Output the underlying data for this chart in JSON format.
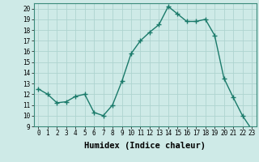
{
  "x": [
    0,
    1,
    2,
    3,
    4,
    5,
    6,
    7,
    8,
    9,
    10,
    11,
    12,
    13,
    14,
    15,
    16,
    17,
    18,
    19,
    20,
    21,
    22,
    23
  ],
  "y": [
    12.5,
    12.0,
    11.2,
    11.3,
    11.8,
    12.0,
    10.3,
    10.0,
    11.0,
    13.2,
    15.8,
    17.0,
    17.8,
    18.5,
    20.2,
    19.5,
    18.8,
    18.8,
    19.0,
    17.5,
    13.5,
    11.7,
    10.0,
    8.7
  ],
  "line_color": "#1a7a6a",
  "marker": "+",
  "marker_size": 4,
  "marker_linewidth": 1.0,
  "bg_color": "#ceeae7",
  "grid_color": "#aed4d0",
  "xlabel": "Humidex (Indice chaleur)",
  "xlim": [
    -0.5,
    23.5
  ],
  "ylim": [
    9,
    20.5
  ],
  "yticks": [
    9,
    10,
    11,
    12,
    13,
    14,
    15,
    16,
    17,
    18,
    19,
    20
  ],
  "xticks": [
    0,
    1,
    2,
    3,
    4,
    5,
    6,
    7,
    8,
    9,
    10,
    11,
    12,
    13,
    14,
    15,
    16,
    17,
    18,
    19,
    20,
    21,
    22,
    23
  ],
  "tick_fontsize": 5.5,
  "xlabel_fontsize": 7.5,
  "xlabel_fontweight": "bold",
  "line_width": 1.0
}
